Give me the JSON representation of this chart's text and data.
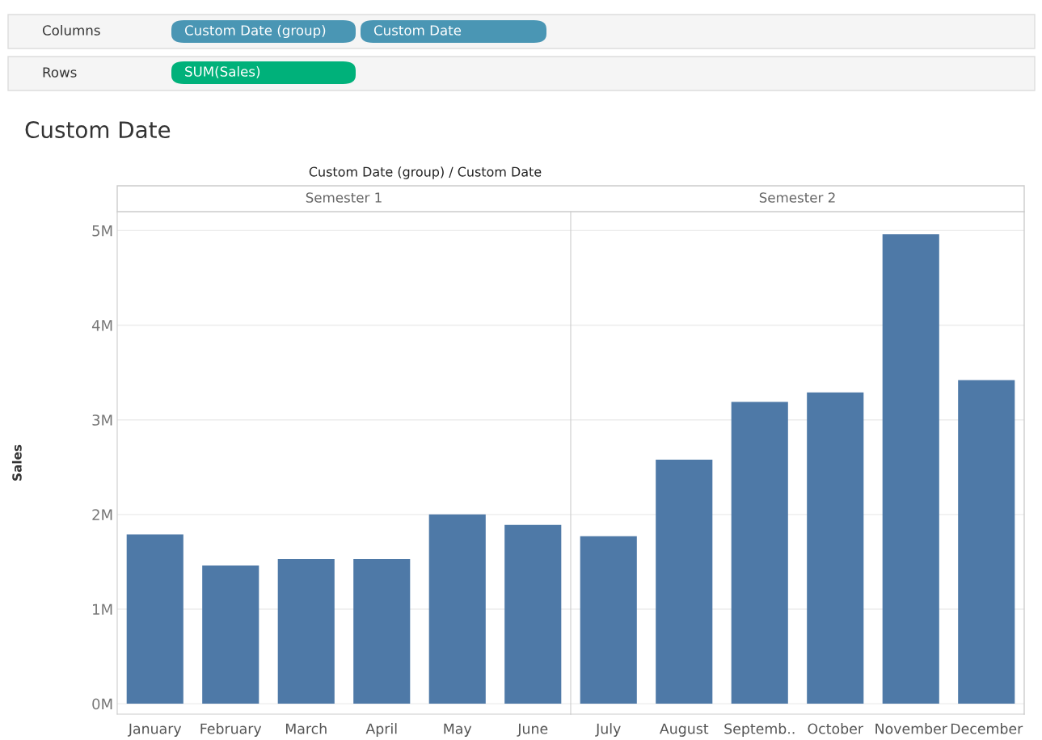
{
  "chart_data": [
    {
      "type": "bar",
      "title": "Semester 1",
      "ylabel": "Sales",
      "categories": [
        "January",
        "February",
        "March",
        "April",
        "May",
        "June"
      ],
      "values": [
        1790000,
        1460000,
        1530000,
        1530000,
        2000000,
        1890000
      ],
      "color": "#4e79a7",
      "ylim": [
        -110000,
        5200000
      ],
      "yticks": [
        {
          "value": 0,
          "label": "0M"
        },
        {
          "value": 1000000,
          "label": "1M"
        },
        {
          "value": 2000000,
          "label": "2M"
        },
        {
          "value": 3000000,
          "label": "3M"
        },
        {
          "value": 4000000,
          "label": "4M"
        },
        {
          "value": 5000000,
          "label": "5M"
        }
      ],
      "grid": "y",
      "annotations": [
        "Custom Date",
        "Custom Date (group) / Custom Date",
        "Columns",
        "Custom Date (group)",
        "Custom Date",
        "Rows",
        "SUM(Sales)"
      ]
    },
    {
      "type": "bar",
      "title": "Semester 2",
      "categories": [
        "July",
        "August",
        "Septemb..",
        "October",
        "November",
        "December"
      ],
      "values": [
        1770000,
        2580000,
        3190000,
        3290000,
        4960000,
        3420000
      ],
      "color": "#4e79a7",
      "ylim": [
        -110000,
        5200000
      ],
      "yticks": [
        {
          "value": 0,
          "label": null
        },
        {
          "value": 1000000,
          "label": null
        },
        {
          "value": 2000000,
          "label": null
        },
        {
          "value": 3000000,
          "label": null
        },
        {
          "value": 4000000,
          "label": null
        },
        {
          "value": 5000000,
          "label": null
        }
      ],
      "grid": "y",
      "tick_labels": "x"
    }
  ]
}
